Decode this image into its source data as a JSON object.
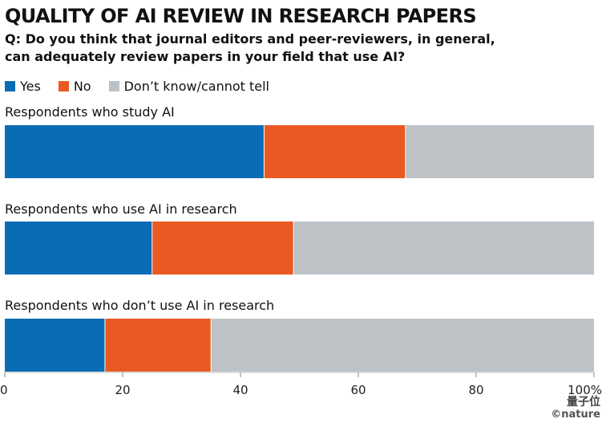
{
  "title": "QUALITY OF AI REVIEW IN RESEARCH PAPERS",
  "question_line1": "Q: Do you think that journal editors and peer-reviewers, in general,",
  "question_line2": "can adequately review papers in your field that use AI?",
  "watermark": {
    "logo_text": "量子位",
    "credit": "©nature"
  },
  "chart_data": {
    "type": "bar",
    "orientation": "horizontal",
    "stacked": true,
    "categories": [
      "Respondents who study AI",
      "Respondents who use AI in research",
      "Respondents who don’t use AI in research"
    ],
    "series": [
      {
        "name": "Yes",
        "color": "#0a6cb4",
        "values": [
          44,
          25,
          17
        ]
      },
      {
        "name": "No",
        "color": "#e85a22",
        "values": [
          24,
          24,
          18
        ]
      },
      {
        "name": "Don’t know/cannot tell",
        "color": "#bdc2c7",
        "values": [
          32,
          51,
          65
        ]
      }
    ],
    "x_ticks": [
      0,
      20,
      40,
      60,
      80,
      100
    ],
    "x_tick_labels": [
      "0",
      "20",
      "40",
      "60",
      "80",
      "100%"
    ],
    "xlim": [
      0,
      100
    ],
    "legend_position": "top-left",
    "grid": false
  }
}
